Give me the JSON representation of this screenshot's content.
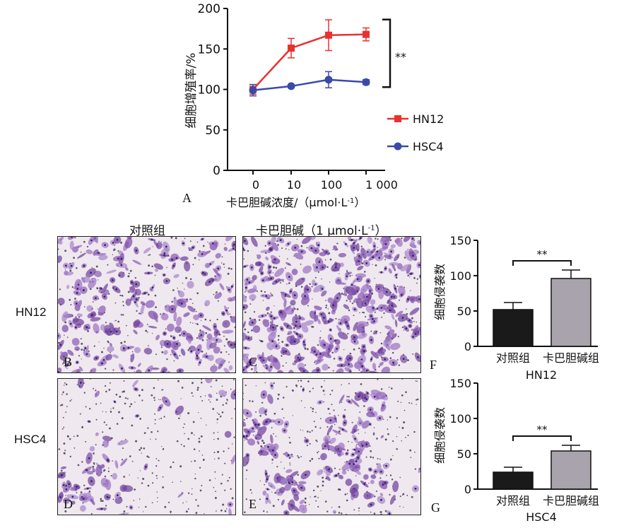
{
  "chart_data": [
    {
      "panel": "A",
      "type": "line",
      "xlabel": "卡巴胆碱浓度/（μmol·L",
      "xlabel_sup": "-1",
      "xlabel_end": "）",
      "ylabel": "细胞增殖率/%",
      "categories": [
        "0",
        "10",
        "100",
        "1 000"
      ],
      "yticks": [
        "0",
        "50",
        "100",
        "150",
        "200"
      ],
      "ylim": [
        0,
        200
      ],
      "series": [
        {
          "name": "HN12",
          "values": [
            100,
            151,
            167,
            168
          ],
          "errors": [
            6,
            12,
            19,
            8
          ],
          "color": "#e8322e",
          "marker": "square"
        },
        {
          "name": "HSC4",
          "values": [
            99,
            104,
            112,
            109
          ],
          "errors": [
            7,
            2,
            10,
            3
          ],
          "color": "#3a4aa8",
          "marker": "circle"
        }
      ],
      "significance": "**"
    },
    {
      "panel": "F",
      "type": "bar",
      "group": "HN12",
      "ylabel": "细胞侵袭数",
      "categories": [
        "对照组",
        "卡巴胆碱组"
      ],
      "values": [
        52,
        96
      ],
      "errors": [
        10,
        12
      ],
      "yticks": [
        "0",
        "50",
        "100",
        "150"
      ],
      "ylim": [
        0,
        150
      ],
      "colors": [
        "#1a1a1a",
        "#a8a3ac"
      ],
      "significance": "**"
    },
    {
      "panel": "G",
      "type": "bar",
      "group": "HSC4",
      "ylabel": "细胞侵袭数",
      "categories": [
        "对照组",
        "卡巴胆碱组"
      ],
      "values": [
        24,
        54
      ],
      "errors": [
        7,
        8
      ],
      "yticks": [
        "0",
        "50",
        "100",
        "150"
      ],
      "ylim": [
        0,
        150
      ],
      "colors": [
        "#1a1a1a",
        "#a8a3ac"
      ],
      "significance": "**"
    }
  ],
  "panels": {
    "a_letter": "A",
    "f_letter": "F",
    "g_letter": "G",
    "col_control": "对照组",
    "col_treat": "卡巴胆碱（1 μmol·L",
    "col_treat_sup": "-1",
    "col_treat_end": "）",
    "row_hn12": "HN12",
    "row_hsc4": "HSC4",
    "micro": [
      {
        "letter": "B",
        "density": "high"
      },
      {
        "letter": "C",
        "density": "very-high"
      },
      {
        "letter": "D",
        "density": "low"
      },
      {
        "letter": "E",
        "density": "medium"
      }
    ]
  }
}
